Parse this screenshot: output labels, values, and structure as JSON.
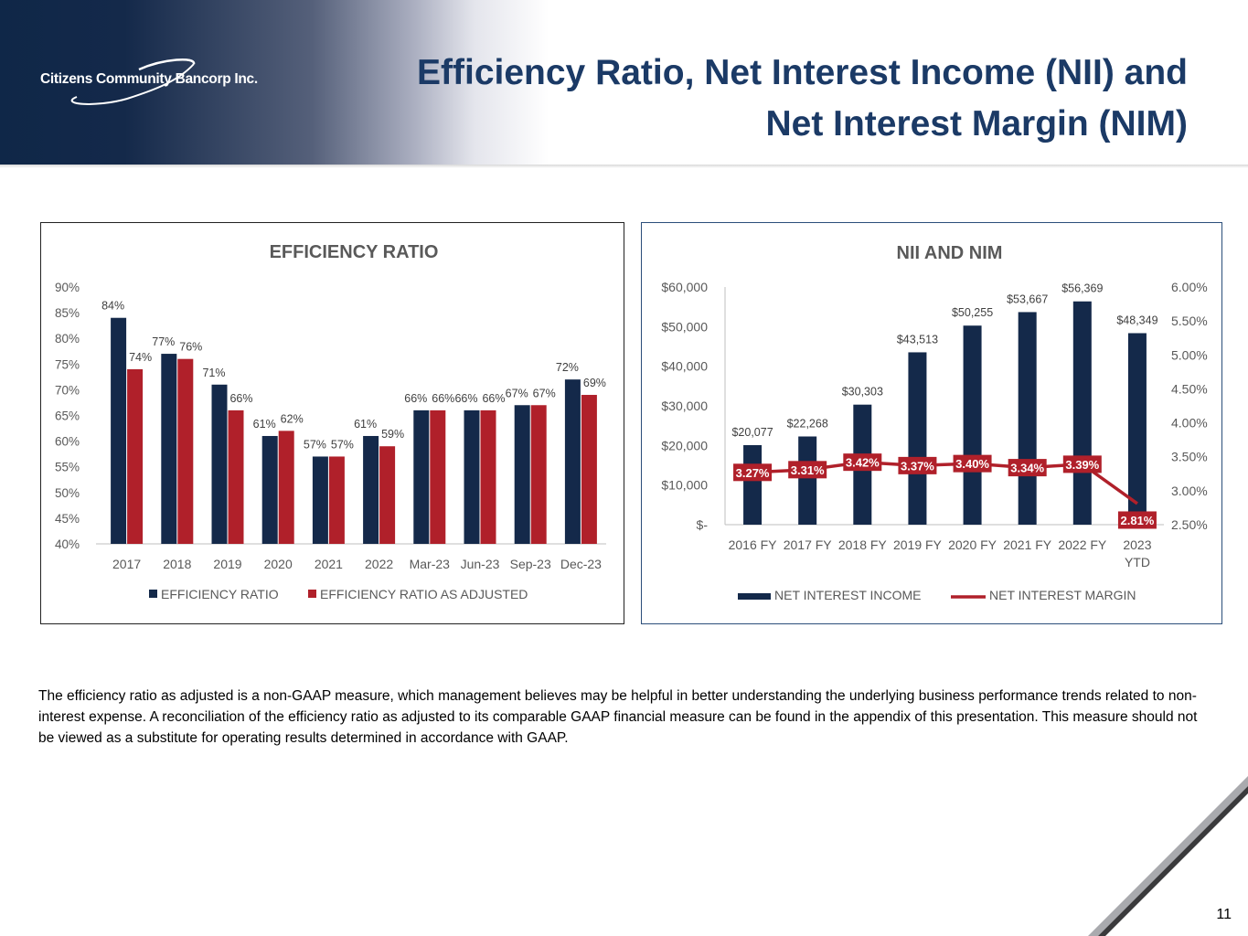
{
  "logo": {
    "text": "Citizens Community Bancorp Inc."
  },
  "title": {
    "line1": "Efficiency Ratio, Net Interest Income (NII) and",
    "line2": "Net Interest Margin (NIM)"
  },
  "footnote": "The efficiency ratio as adjusted is a non-GAAP measure, which management believes may be helpful in better understanding the underlying business performance trends related to non-interest expense. A reconciliation of the efficiency ratio as adjusted to its comparable GAAP financial measure can be found in the appendix of this presentation. This measure should not be viewed as a substitute for operating results determined in accordance with GAAP.",
  "page_number": "11",
  "colors": {
    "navy": "#14294a",
    "red": "#b0202a",
    "title": "#1b3a66"
  },
  "chart_data": [
    {
      "type": "bar",
      "title": "EFFICIENCY RATIO",
      "categories": [
        "2017",
        "2018",
        "2019",
        "2020",
        "2021",
        "2022",
        "Mar-23",
        "Jun-23",
        "Sep-23",
        "Dec-23"
      ],
      "ylim": [
        40,
        90
      ],
      "yticks": [
        "40%",
        "45%",
        "50%",
        "55%",
        "60%",
        "65%",
        "70%",
        "75%",
        "80%",
        "85%",
        "90%"
      ],
      "series": [
        {
          "name": "EFFICIENCY RATIO",
          "color": "#14294a",
          "values": [
            84,
            77,
            71,
            61,
            57,
            61,
            66,
            66,
            67,
            72
          ],
          "labels": [
            "84%",
            "77%",
            "71%",
            "61%",
            "57%",
            "61%",
            "66%",
            "66%",
            "67%",
            "72%"
          ]
        },
        {
          "name": "EFFICIENCY RATIO AS ADJUSTED",
          "color": "#b0202a",
          "values": [
            74,
            76,
            66,
            62,
            57,
            59,
            66,
            66,
            67,
            69
          ],
          "labels": [
            "74%",
            "76%",
            "66%",
            "62%",
            "57%",
            "59%",
            "66%",
            "66%",
            "67%",
            "69%"
          ]
        }
      ],
      "legend": "bottom",
      "grid": false
    },
    {
      "type": "bar",
      "title": "NII AND NIM",
      "categories": [
        "2016 FY",
        "2017 FY",
        "2018 FY",
        "2019 FY",
        "2020 FY",
        "2021 FY",
        "2022 FY",
        "2023 YTD"
      ],
      "ylim": [
        0,
        60000
      ],
      "yticks": [
        "$-",
        "$10,000",
        "$20,000",
        "$30,000",
        "$40,000",
        "$50,000",
        "$60,000"
      ],
      "y2lim": [
        2.5,
        6.0
      ],
      "y2ticks": [
        "2.50%",
        "3.00%",
        "3.50%",
        "4.00%",
        "4.50%",
        "5.00%",
        "5.50%",
        "6.00%"
      ],
      "series": [
        {
          "name": "NET INTEREST INCOME",
          "type": "bar",
          "color": "#14294a",
          "values": [
            20077,
            22268,
            30303,
            43513,
            50255,
            53667,
            56369,
            48349
          ],
          "labels": [
            "$20,077",
            "$22,268",
            "$30,303",
            "$43,513",
            "$50,255",
            "$53,667",
            "$56,369",
            "$48,349"
          ]
        },
        {
          "name": "NET INTEREST MARGIN",
          "type": "line",
          "axis": "secondary",
          "color": "#b0202a",
          "values": [
            3.27,
            3.31,
            3.42,
            3.37,
            3.4,
            3.34,
            3.39,
            2.81
          ],
          "labels": [
            "3.27%",
            "3.31%",
            "3.42%",
            "3.37%",
            "3.40%",
            "3.34%",
            "3.39%",
            "2.81%"
          ]
        }
      ],
      "legend": "bottom",
      "grid": false
    }
  ]
}
